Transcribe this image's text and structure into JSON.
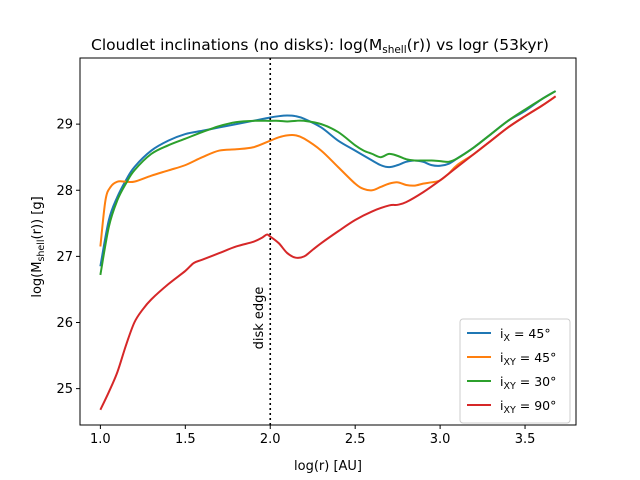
{
  "chart_data": {
    "type": "line",
    "title": "Cloudlet inclinations (no disks): log(M",
    "title_sub": "shell",
    "title_tail": "(r)) vs logr (53kyr)",
    "xlabel": "log(r) [AU]",
    "ylabel": "log(M",
    "ylabel_sub": "shell",
    "ylabel_tail": "(r)) [g]",
    "xlim": [
      0.88,
      3.8
    ],
    "ylim": [
      24.45,
      30.0
    ],
    "xticks": [
      1.0,
      1.5,
      2.0,
      2.5,
      3.0,
      3.5
    ],
    "xtick_labels": [
      "1.0",
      "1.5",
      "2.0",
      "2.5",
      "3.0",
      "3.5"
    ],
    "yticks": [
      25,
      26,
      27,
      28,
      29
    ],
    "ytick_labels": [
      "25",
      "26",
      "27",
      "28",
      "29"
    ],
    "grid": false,
    "legend_position": "lower-right",
    "vline": {
      "x": 2.0,
      "label": "disk edge",
      "style": "dotted",
      "color": "#000000"
    },
    "series": [
      {
        "name_main": "i",
        "name_sub": "X",
        "name_tail": " = 45°",
        "color": "#1f77b4",
        "x": [
          1.0,
          1.05,
          1.1,
          1.15,
          1.2,
          1.3,
          1.4,
          1.5,
          1.6,
          1.7,
          1.8,
          1.9,
          2.0,
          2.05,
          2.1,
          2.15,
          2.2,
          2.3,
          2.4,
          2.5,
          2.6,
          2.65,
          2.7,
          2.75,
          2.8,
          2.85,
          2.9,
          2.95,
          3.0,
          3.05,
          3.1,
          3.2,
          3.3,
          3.4,
          3.5,
          3.6,
          3.68
        ],
        "y": [
          26.85,
          27.55,
          27.9,
          28.15,
          28.35,
          28.6,
          28.75,
          28.85,
          28.9,
          28.95,
          29.0,
          29.05,
          29.1,
          29.12,
          29.13,
          29.12,
          29.08,
          28.95,
          28.75,
          28.6,
          28.45,
          28.38,
          28.35,
          28.38,
          28.43,
          28.45,
          28.43,
          28.38,
          28.37,
          28.4,
          28.48,
          28.65,
          28.85,
          29.05,
          29.2,
          29.38,
          29.5
        ]
      },
      {
        "name_main": "i",
        "name_sub": "XY",
        "name_tail": " = 45°",
        "color": "#ff7f0e",
        "x": [
          1.0,
          1.03,
          1.06,
          1.1,
          1.15,
          1.2,
          1.3,
          1.4,
          1.5,
          1.6,
          1.7,
          1.8,
          1.9,
          2.0,
          2.05,
          2.1,
          2.15,
          2.2,
          2.3,
          2.4,
          2.5,
          2.55,
          2.6,
          2.65,
          2.7,
          2.75,
          2.8,
          2.85,
          2.9,
          2.95,
          3.0,
          3.05,
          3.1,
          3.2,
          3.3,
          3.4,
          3.5,
          3.6,
          3.68
        ],
        "y": [
          27.15,
          27.85,
          28.05,
          28.13,
          28.13,
          28.13,
          28.22,
          28.3,
          28.38,
          28.5,
          28.6,
          28.62,
          28.65,
          28.75,
          28.8,
          28.83,
          28.83,
          28.78,
          28.6,
          28.35,
          28.1,
          28.02,
          28.0,
          28.05,
          28.1,
          28.12,
          28.08,
          28.07,
          28.1,
          28.12,
          28.15,
          28.25,
          28.38,
          28.55,
          28.75,
          28.95,
          29.12,
          29.28,
          29.42
        ]
      },
      {
        "name_main": "i",
        "name_sub": "XY",
        "name_tail": " = 30°",
        "color": "#2ca02c",
        "x": [
          1.0,
          1.05,
          1.1,
          1.15,
          1.2,
          1.3,
          1.4,
          1.5,
          1.6,
          1.7,
          1.8,
          1.9,
          2.0,
          2.05,
          2.1,
          2.15,
          2.2,
          2.3,
          2.4,
          2.5,
          2.55,
          2.6,
          2.65,
          2.7,
          2.75,
          2.8,
          2.85,
          2.9,
          2.95,
          3.0,
          3.05,
          3.1,
          3.2,
          3.3,
          3.4,
          3.5,
          3.6,
          3.68
        ],
        "y": [
          26.72,
          27.45,
          27.85,
          28.1,
          28.3,
          28.55,
          28.68,
          28.78,
          28.88,
          28.97,
          29.03,
          29.05,
          29.05,
          29.05,
          29.04,
          29.05,
          29.05,
          29.0,
          28.88,
          28.68,
          28.6,
          28.55,
          28.5,
          28.55,
          28.52,
          28.47,
          28.45,
          28.45,
          28.45,
          28.44,
          28.43,
          28.48,
          28.65,
          28.85,
          29.05,
          29.22,
          29.38,
          29.5
        ]
      },
      {
        "name_main": "i",
        "name_sub": "XY",
        "name_tail": " = 90°",
        "color": "#d62728",
        "x": [
          1.0,
          1.05,
          1.1,
          1.15,
          1.2,
          1.25,
          1.3,
          1.4,
          1.5,
          1.55,
          1.6,
          1.7,
          1.8,
          1.9,
          1.95,
          1.98,
          2.0,
          2.05,
          2.1,
          2.15,
          2.2,
          2.25,
          2.3,
          2.4,
          2.5,
          2.6,
          2.7,
          2.75,
          2.8,
          2.9,
          3.0,
          3.1,
          3.2,
          3.3,
          3.4,
          3.5,
          3.6,
          3.68
        ],
        "y": [
          24.68,
          24.95,
          25.25,
          25.65,
          26.0,
          26.2,
          26.35,
          26.58,
          26.78,
          26.9,
          26.95,
          27.05,
          27.15,
          27.22,
          27.28,
          27.33,
          27.3,
          27.2,
          27.05,
          26.98,
          27.0,
          27.1,
          27.2,
          27.38,
          27.55,
          27.68,
          27.77,
          27.78,
          27.82,
          27.97,
          28.15,
          28.35,
          28.55,
          28.75,
          28.95,
          29.12,
          29.28,
          29.42
        ]
      }
    ]
  }
}
